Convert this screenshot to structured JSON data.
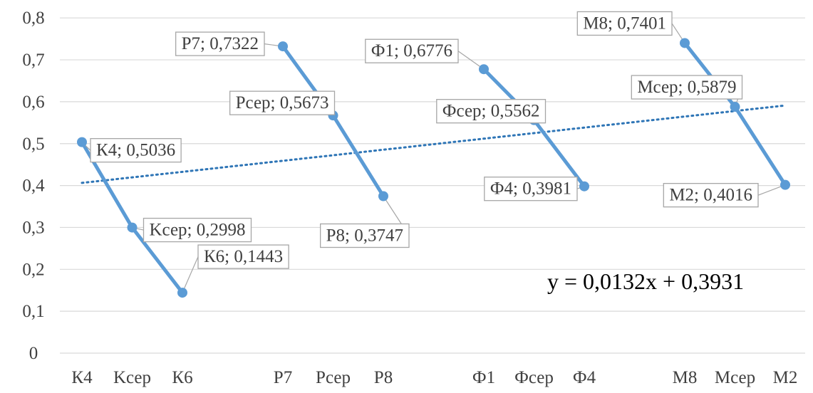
{
  "chart_data": {
    "type": "line",
    "categories": [
      "К4",
      "Kсер",
      "К6",
      "",
      "Р7",
      "Рсер",
      "Р8",
      "",
      "Ф1",
      "Фсер",
      "Ф4",
      "",
      "М8",
      "Мсер",
      "М2"
    ],
    "series": [
      {
        "segments": [
          {
            "points": [
              {
                "index": 0,
                "value": 0.5036,
                "label": "К4; 0,5036"
              },
              {
                "index": 1,
                "value": 0.2998,
                "label": "Kсер; 0,2998"
              },
              {
                "index": 2,
                "value": 0.1443,
                "label": "К6; 0,1443"
              }
            ]
          },
          {
            "points": [
              {
                "index": 4,
                "value": 0.7322,
                "label": "Р7; 0,7322"
              },
              {
                "index": 5,
                "value": 0.5673,
                "label": "Рсер; 0,5673"
              },
              {
                "index": 6,
                "value": 0.3747,
                "label": "Р8; 0,3747"
              }
            ]
          },
          {
            "points": [
              {
                "index": 8,
                "value": 0.6776,
                "label": "Ф1; 0,6776"
              },
              {
                "index": 9,
                "value": 0.5562,
                "label": "Фсер; 0,5562"
              },
              {
                "index": 10,
                "value": 0.3981,
                "label": "Ф4; 0,3981"
              }
            ]
          },
          {
            "points": [
              {
                "index": 12,
                "value": 0.7401,
                "label": "М8; 0,7401"
              },
              {
                "index": 13,
                "value": 0.5879,
                "label": "Мсер; 0,5879"
              },
              {
                "index": 14,
                "value": 0.4016,
                "label": "М2; 0,4016"
              }
            ]
          }
        ]
      }
    ],
    "trendline": {
      "slope": 0.0132,
      "intercept": 0.3931,
      "style": "dotted",
      "equation": "y = 0,0132x + 0,3931"
    },
    "yticks": [
      "0",
      "0,1",
      "0,2",
      "0,3",
      "0,4",
      "0,5",
      "0,6",
      "0,7",
      "0,8"
    ],
    "ylim": [
      0,
      0.8
    ],
    "grid": true,
    "legend": "none",
    "colors": {
      "line": "#5b9bd5",
      "trend": "#2e75b6",
      "grid": "#d9d9d9",
      "label_border": "#a6a6a6",
      "text": "#404040"
    }
  }
}
